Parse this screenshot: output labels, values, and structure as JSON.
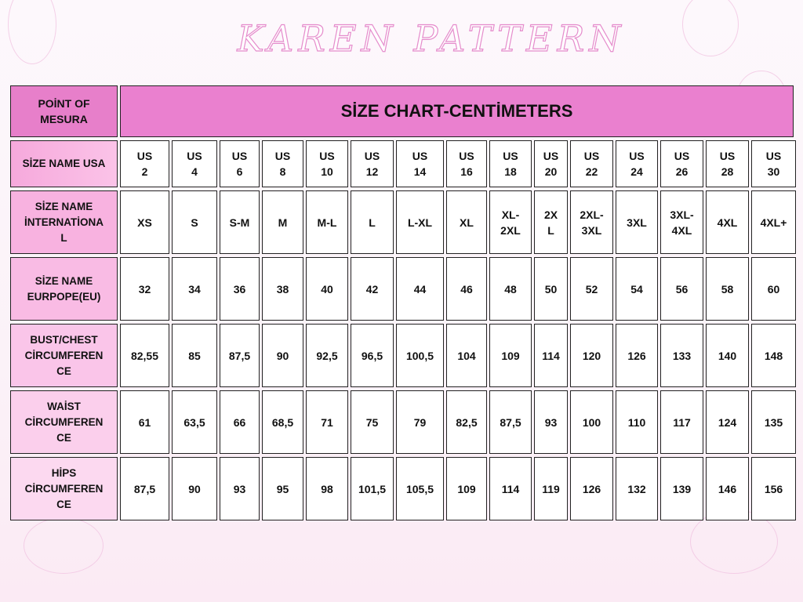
{
  "brand": "KAREN PATTERN",
  "header": {
    "label": "POİNT OF\nMESURA",
    "title": "SİZE CHART-CENTİMETERS"
  },
  "rows": [
    {
      "label": "SİZE NAME USA",
      "values": [
        "US\n2",
        "US\n4",
        "US\n6",
        "US\n8",
        "US\n10",
        "US\n12",
        "US\n14",
        "US\n16",
        "US\n18",
        "US\n20",
        "US\n22",
        "US\n24",
        "US\n26",
        "US\n28",
        "US\n30"
      ]
    },
    {
      "label": "SİZE NAME\nİNTERNATİONA\nL",
      "values": [
        "XS",
        "S",
        "S-M",
        "M",
        "M-L",
        "L",
        "L-XL",
        "XL",
        "XL-\n2XL",
        "2X\nL",
        "2XL-\n3XL",
        "3XL",
        "3XL-\n4XL",
        "4XL",
        "4XL+"
      ]
    },
    {
      "label": "SİZE NAME\nEURPOPE(EU)",
      "values": [
        "32",
        "34",
        "36",
        "38",
        "40",
        "42",
        "44",
        "46",
        "48",
        "50",
        "52",
        "54",
        "56",
        "58",
        "60"
      ]
    },
    {
      "label": "BUST/CHEST\nCİRCUMFEREN\nCE",
      "values": [
        "82,55",
        "85",
        "87,5",
        "90",
        "92,5",
        "96,5",
        "100,5",
        "104",
        "109",
        "114",
        "120",
        "126",
        "133",
        "140",
        "148"
      ]
    },
    {
      "label": "WAİST\nCİRCUMFEREN\nCE",
      "values": [
        "61",
        "63,5",
        "66",
        "68,5",
        "71",
        "75",
        "79",
        "82,5",
        "87,5",
        "93",
        "100",
        "110",
        "117",
        "124",
        "135"
      ]
    },
    {
      "label": "HİPS\nCİRCUMFEREN\nCE",
      "values": [
        "87,5",
        "90",
        "93",
        "95",
        "98",
        "101,5",
        "105,5",
        "109",
        "114",
        "119",
        "126",
        "132",
        "139",
        "146",
        "156"
      ]
    }
  ]
}
